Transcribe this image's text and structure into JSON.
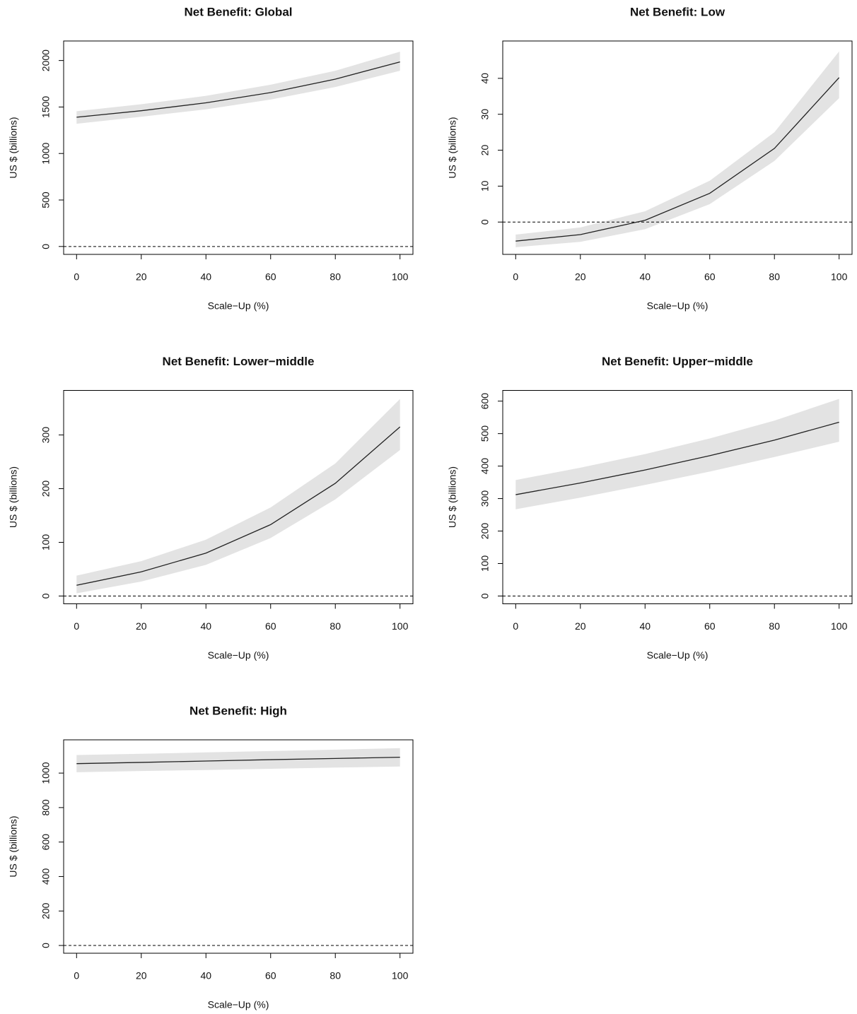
{
  "chart_data": [
    {
      "type": "line",
      "title": "Net Benefit: Global",
      "xlabel": "Scale−Up (%)",
      "ylabel": "US $ (billions)",
      "x": [
        0,
        20,
        40,
        60,
        80,
        100
      ],
      "values": [
        1390,
        1460,
        1545,
        1655,
        1800,
        1985
      ],
      "lower": [
        1320,
        1395,
        1475,
        1580,
        1715,
        1890
      ],
      "upper": [
        1455,
        1530,
        1620,
        1740,
        1890,
        2095
      ],
      "color": "#222222",
      "band_color": "#e3e3e3",
      "hline": 0,
      "xlim": [
        -4,
        104
      ],
      "xticks": [
        0,
        20,
        40,
        60,
        80,
        100
      ],
      "ylim": [
        -85,
        2210
      ],
      "yticks": [
        0,
        500,
        1000,
        1500,
        2000
      ]
    },
    {
      "type": "line",
      "title": "Net Benefit: Low",
      "xlabel": "Scale−Up (%)",
      "ylabel": "US $ (billions)",
      "x": [
        0,
        20,
        40,
        60,
        80,
        100
      ],
      "values": [
        -5.3,
        -3.5,
        0.5,
        8,
        20.5,
        40.2
      ],
      "lower": [
        -7,
        -5.5,
        -2,
        5,
        17,
        34.5
      ],
      "upper": [
        -3.5,
        -1.5,
        3,
        11.5,
        25,
        47.5
      ],
      "color": "#222222",
      "band_color": "#e3e3e3",
      "hline": 0,
      "xlim": [
        -4,
        104
      ],
      "xticks": [
        0,
        20,
        40,
        60,
        80,
        100
      ],
      "ylim": [
        -9,
        50.4
      ],
      "yticks": [
        0,
        10,
        20,
        30,
        40
      ]
    },
    {
      "type": "line",
      "title": "Net Benefit: Lower−middle",
      "xlabel": "Scale−Up (%)",
      "ylabel": "US $ (billions)",
      "x": [
        0,
        20,
        40,
        60,
        80,
        100
      ],
      "values": [
        20,
        45,
        80,
        133,
        210,
        315
      ],
      "lower": [
        5,
        27,
        58,
        108,
        180,
        272
      ],
      "upper": [
        38,
        65,
        105,
        165,
        247,
        367
      ],
      "color": "#222222",
      "band_color": "#e3e3e3",
      "hline": 0,
      "xlim": [
        -4,
        104
      ],
      "xticks": [
        0,
        20,
        40,
        60,
        80,
        100
      ],
      "ylim": [
        -14.5,
        383
      ],
      "yticks": [
        0,
        100,
        200,
        300
      ]
    },
    {
      "type": "line",
      "title": "Net Benefit: Upper−middle",
      "xlabel": "Scale−Up (%)",
      "ylabel": "US $ (billions)",
      "x": [
        0,
        20,
        40,
        60,
        80,
        100
      ],
      "values": [
        312,
        348,
        388,
        432,
        480,
        535
      ],
      "lower": [
        267,
        303,
        342,
        383,
        428,
        475
      ],
      "upper": [
        357,
        395,
        437,
        485,
        540,
        607
      ],
      "color": "#222222",
      "band_color": "#e3e3e3",
      "hline": 0,
      "xlim": [
        -4,
        104
      ],
      "xticks": [
        0,
        20,
        40,
        60,
        80,
        100
      ],
      "ylim": [
        -24,
        633
      ],
      "yticks": [
        0,
        100,
        200,
        300,
        400,
        500,
        600
      ]
    },
    {
      "type": "line",
      "title": "Net Benefit: High",
      "xlabel": "Scale−Up (%)",
      "ylabel": "US $ (billions)",
      "x": [
        0,
        20,
        40,
        60,
        80,
        100
      ],
      "values": [
        1055,
        1062,
        1070,
        1078,
        1085,
        1092
      ],
      "lower": [
        1005,
        1012,
        1018,
        1025,
        1032,
        1038
      ],
      "upper": [
        1105,
        1112,
        1120,
        1128,
        1136,
        1145
      ],
      "color": "#222222",
      "band_color": "#e3e3e3",
      "hline": 0,
      "xlim": [
        -4,
        104
      ],
      "xticks": [
        0,
        20,
        40,
        60,
        80,
        100
      ],
      "ylim": [
        -45,
        1193
      ],
      "yticks": [
        0,
        200,
        400,
        600,
        800,
        1000
      ]
    }
  ]
}
